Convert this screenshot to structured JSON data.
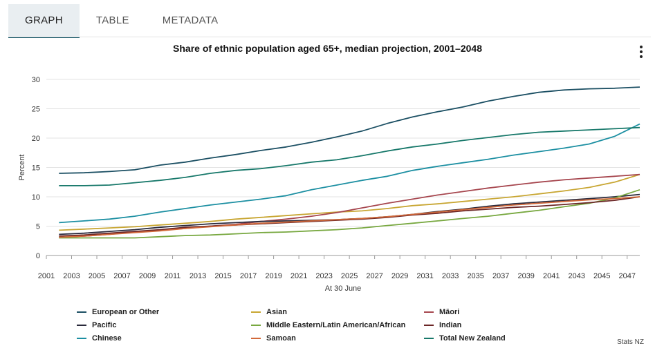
{
  "tabs": [
    {
      "label": "GRAPH",
      "active": true
    },
    {
      "label": "TABLE",
      "active": false
    },
    {
      "label": "METADATA",
      "active": false
    }
  ],
  "source": "Stats NZ",
  "chart_data": {
    "type": "line",
    "title": "Share of ethnic population aged 65+, median projection, 2001–2048",
    "xlabel": "At 30 June",
    "ylabel": "Percent",
    "ylim": [
      0,
      30
    ],
    "yticks": [
      0,
      5,
      10,
      15,
      20,
      25,
      30
    ],
    "xlim": [
      2001,
      2048
    ],
    "xticks": [
      2001,
      2003,
      2005,
      2007,
      2009,
      2011,
      2013,
      2015,
      2017,
      2019,
      2021,
      2023,
      2025,
      2027,
      2029,
      2031,
      2033,
      2035,
      2037,
      2039,
      2041,
      2043,
      2045,
      2047
    ],
    "grid": "y",
    "legend_position": "bottom",
    "x": [
      2002,
      2004,
      2006,
      2008,
      2010,
      2012,
      2014,
      2016,
      2018,
      2020,
      2022,
      2024,
      2026,
      2028,
      2030,
      2032,
      2034,
      2036,
      2038,
      2040,
      2042,
      2044,
      2046,
      2048
    ],
    "series": [
      {
        "name": "European or Other",
        "color": "#1b4f63",
        "values": [
          14.0,
          14.1,
          14.3,
          14.6,
          15.4,
          15.9,
          16.6,
          17.2,
          17.9,
          18.5,
          19.3,
          20.2,
          21.2,
          22.5,
          23.6,
          24.5,
          25.3,
          26.3,
          27.1,
          27.8,
          28.2,
          28.4,
          28.5,
          28.7
        ]
      },
      {
        "name": "Asian",
        "color": "#c8a632",
        "values": [
          4.3,
          4.5,
          4.7,
          4.9,
          5.2,
          5.5,
          5.8,
          6.2,
          6.5,
          6.8,
          7.1,
          7.4,
          7.6,
          8.0,
          8.5,
          8.8,
          9.2,
          9.6,
          10.0,
          10.5,
          11.0,
          11.6,
          12.5,
          13.8
        ]
      },
      {
        "name": "Māori",
        "color": "#a6464e",
        "values": [
          3.1,
          3.3,
          3.6,
          4.0,
          4.3,
          4.6,
          5.0,
          5.3,
          5.8,
          6.2,
          6.7,
          7.3,
          8.1,
          8.9,
          9.6,
          10.3,
          10.9,
          11.5,
          12.0,
          12.5,
          12.9,
          13.2,
          13.5,
          13.8
        ]
      },
      {
        "name": "Pacific",
        "color": "#2a2a3c",
        "values": [
          3.6,
          3.8,
          4.1,
          4.4,
          4.8,
          5.1,
          5.4,
          5.6,
          5.8,
          5.9,
          6.0,
          6.1,
          6.3,
          6.6,
          7.0,
          7.5,
          7.9,
          8.4,
          8.8,
          9.1,
          9.4,
          9.7,
          10.0,
          10.4
        ]
      },
      {
        "name": "Middle Eastern/Latin American/African",
        "color": "#78a840",
        "values": [
          3.0,
          3.0,
          3.0,
          3.0,
          3.2,
          3.4,
          3.5,
          3.7,
          3.9,
          4.0,
          4.2,
          4.4,
          4.7,
          5.1,
          5.5,
          5.9,
          6.3,
          6.7,
          7.2,
          7.7,
          8.3,
          8.9,
          9.8,
          11.2
        ]
      },
      {
        "name": "Indian",
        "color": "#6b2626",
        "values": [
          3.3,
          3.5,
          3.8,
          4.1,
          4.4,
          4.8,
          5.0,
          5.2,
          5.4,
          5.6,
          5.8,
          6.0,
          6.2,
          6.5,
          6.9,
          7.2,
          7.6,
          7.9,
          8.2,
          8.4,
          8.7,
          9.0,
          9.4,
          10.0
        ]
      },
      {
        "name": "Chinese",
        "color": "#1c8fa2",
        "values": [
          5.6,
          5.9,
          6.2,
          6.7,
          7.4,
          8.0,
          8.6,
          9.1,
          9.6,
          10.2,
          11.2,
          12.0,
          12.8,
          13.5,
          14.5,
          15.2,
          15.8,
          16.4,
          17.1,
          17.7,
          18.3,
          19.0,
          20.3,
          22.4
        ]
      },
      {
        "name": "Samoan",
        "color": "#d2693a",
        "values": [
          3.1,
          3.3,
          3.6,
          3.9,
          4.2,
          4.6,
          4.9,
          5.2,
          5.5,
          5.7,
          5.9,
          6.1,
          6.3,
          6.6,
          7.0,
          7.4,
          7.8,
          8.2,
          8.6,
          8.9,
          9.2,
          9.5,
          9.7,
          10.0
        ]
      },
      {
        "name": "Total New Zealand",
        "color": "#17786a",
        "values": [
          11.9,
          11.9,
          12.0,
          12.4,
          12.8,
          13.3,
          14.0,
          14.5,
          14.8,
          15.3,
          15.9,
          16.3,
          17.0,
          17.8,
          18.5,
          19.0,
          19.6,
          20.1,
          20.6,
          21.0,
          21.2,
          21.4,
          21.6,
          21.8
        ]
      }
    ]
  }
}
